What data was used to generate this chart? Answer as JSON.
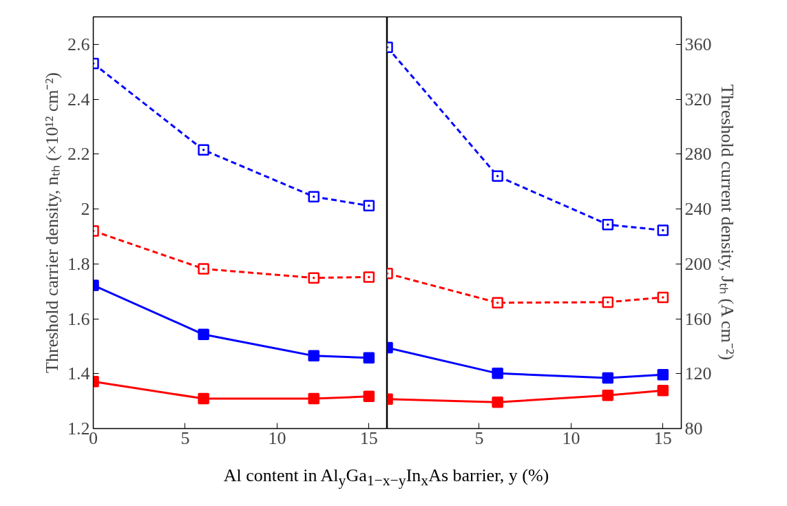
{
  "chart_data": [
    {
      "type": "line",
      "ylabel": "Threshold carrier density, nₜₕ (×10¹² cm⁻²)",
      "xlabel": "Al content in Al$_{y}$Ga$_{1−x−y}$In$_{x}$As barrier, y (%)",
      "x": [
        0,
        6,
        12,
        15
      ],
      "xlim": [
        0,
        16
      ],
      "xticks": [
        0,
        5,
        10,
        15
      ],
      "ylim": [
        1.2,
        2.7
      ],
      "yticks": [
        1.2,
        1.4,
        1.6,
        1.8,
        2,
        2.2,
        2.4,
        2.6
      ],
      "marker": "square",
      "series": [
        {
          "color": "#0000ff",
          "line_style": "dashed",
          "values": [
            2.53,
            2.215,
            2.045,
            2.012
          ]
        },
        {
          "color": "#ff0000",
          "line_style": "dashed",
          "values": [
            1.92,
            1.782,
            1.749,
            1.752
          ]
        },
        {
          "color": "#0000ff",
          "line_style": "solid",
          "values": [
            1.722,
            1.543,
            1.465,
            1.458
          ]
        },
        {
          "color": "#ff0000",
          "line_style": "solid",
          "values": [
            1.371,
            1.309,
            1.309,
            1.317
          ]
        }
      ]
    },
    {
      "type": "line",
      "y2label": "Threshold current density, Jₜₕ (A cm⁻²)",
      "x": [
        0,
        6,
        12,
        15
      ],
      "xlim": [
        0,
        16
      ],
      "xticks": [
        5,
        10,
        15
      ],
      "y2lim": [
        80,
        380
      ],
      "y2ticks": [
        80,
        120,
        160,
        200,
        240,
        280,
        320,
        360
      ],
      "marker": "square",
      "series": [
        {
          "color": "#0000ff",
          "line_style": "dashed",
          "axis": "y2",
          "values": [
            357.8,
            264.0,
            228.6,
            224.5
          ]
        },
        {
          "color": "#ff0000",
          "line_style": "dashed",
          "axis": "y2",
          "values": [
            193.0,
            171.7,
            172.1,
            175.6
          ]
        },
        {
          "color": "#0000ff",
          "line_style": "solid",
          "axis": "y2",
          "values": [
            138.9,
            120.2,
            116.9,
            119.3
          ]
        },
        {
          "color": "#ff0000",
          "line_style": "solid",
          "axis": "y2",
          "values": [
            101.4,
            99.2,
            104.2,
            107.7
          ]
        }
      ]
    }
  ]
}
